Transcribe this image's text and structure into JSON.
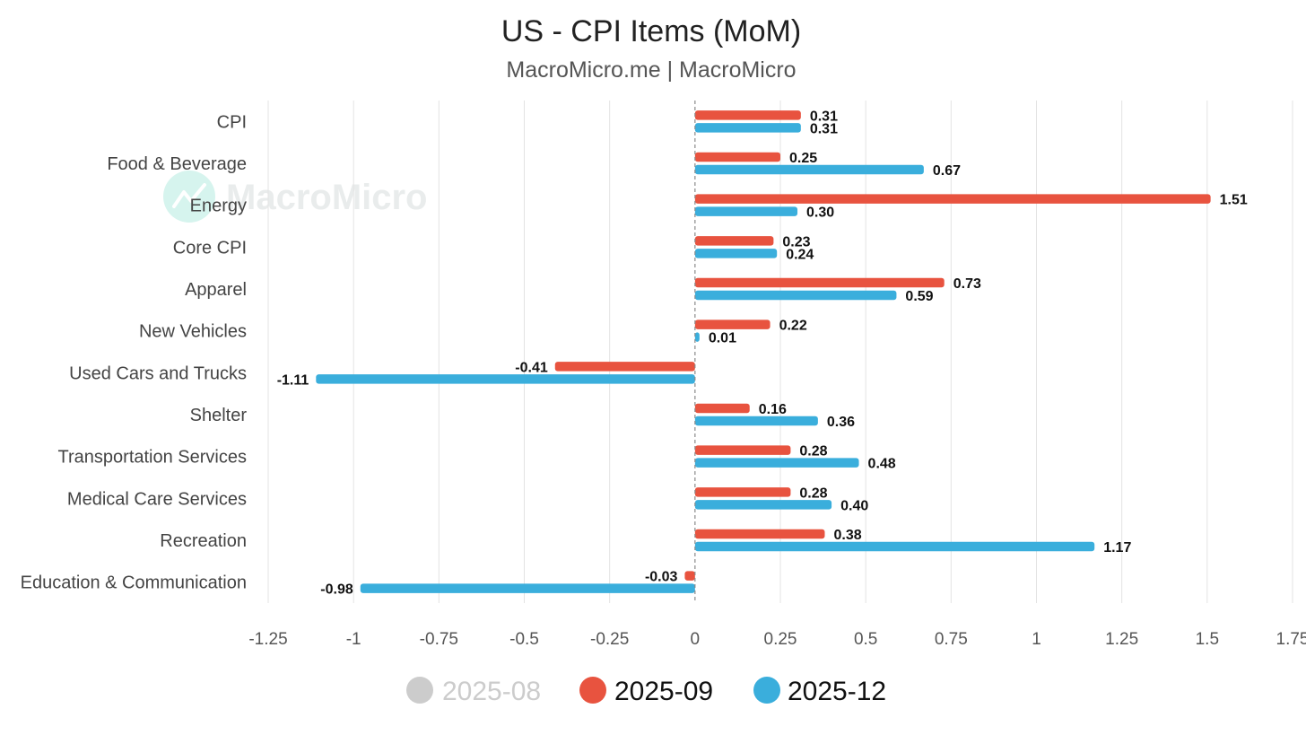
{
  "chart_data": {
    "type": "bar",
    "orientation": "horizontal",
    "title": "US - CPI Items (MoM)",
    "subtitle": "MacroMicro.me | MacroMicro",
    "watermark": "MacroMicro",
    "categories": [
      "CPI",
      "Food & Beverage",
      "Energy",
      "Core CPI",
      "Apparel",
      "New Vehicles",
      "Used Cars and Trucks",
      "Shelter",
      "Transportation Services",
      "Medical Care Services",
      "Recreation",
      "Education & Communication"
    ],
    "series": [
      {
        "name": "2025-09",
        "color": "#e8533f",
        "visible": true,
        "values": [
          0.31,
          0.25,
          1.51,
          0.23,
          0.73,
          0.22,
          -0.41,
          0.16,
          0.28,
          0.28,
          0.38,
          -0.03
        ],
        "labels": [
          "0.31",
          "0.25",
          "1.51",
          "0.23",
          "0.73",
          "0.22",
          "-0.41",
          "0.16",
          "0.28",
          "0.28",
          "0.38",
          "-0.03"
        ]
      },
      {
        "name": "2025-12",
        "color": "#3aaedc",
        "visible": true,
        "values": [
          0.31,
          0.67,
          0.3,
          0.24,
          0.59,
          0.01,
          -1.11,
          0.36,
          0.48,
          0.4,
          1.17,
          -0.98
        ],
        "labels": [
          "0.31",
          "0.67",
          "0.30",
          "0.24",
          "0.59",
          "0.01",
          "-1.11",
          "0.36",
          "0.48",
          "0.40",
          "1.17",
          "-0.98"
        ]
      }
    ],
    "legend_items": [
      {
        "name": "2025-08",
        "color": "#cccccc",
        "visible": false
      },
      {
        "name": "2025-09",
        "color": "#e8533f",
        "visible": true
      },
      {
        "name": "2025-12",
        "color": "#3aaedc",
        "visible": true
      }
    ],
    "xlim": [
      -1.25,
      1.75
    ],
    "xticks": [
      -1.25,
      -1,
      -0.75,
      -0.5,
      -0.25,
      0,
      0.25,
      0.5,
      0.75,
      1,
      1.25,
      1.5,
      1.75
    ],
    "xtick_labels": [
      "-1.25",
      "-1",
      "-0.75",
      "-0.5",
      "-0.25",
      "0",
      "0.25",
      "0.5",
      "0.75",
      "1",
      "1.25",
      "1.5",
      "1.75"
    ],
    "grid": true,
    "zero_line": "dashed",
    "legend_position": "bottom"
  }
}
